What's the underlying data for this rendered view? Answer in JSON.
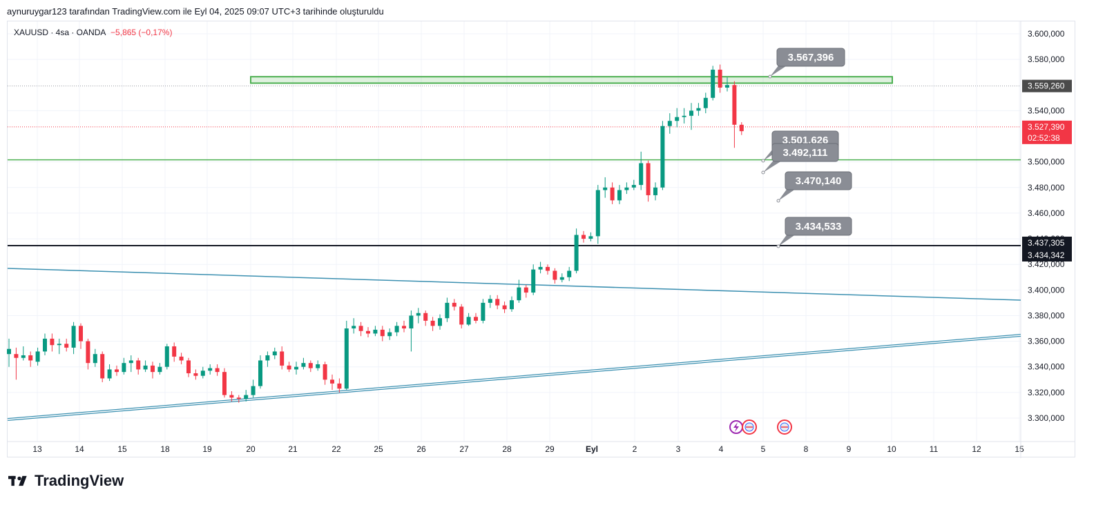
{
  "header": {
    "caption": "aynuruygar123 tarafından TradingView.com ile Eyl 04, 2025 09:07 UTC+3 tarihinde oluşturuldu"
  },
  "legend": {
    "symbol_info": "XAUUSD · 4sa · OANDA",
    "change": "−5,865 (−0,17%)"
  },
  "footer": {
    "brand": "TradingView"
  },
  "chart_data": {
    "type": "candlestick",
    "title": "XAUUSD · 4sa · OANDA",
    "y_range": [
      3290000,
      3610000
    ],
    "y_ticks": [
      {
        "v": 3600000,
        "label": "3.600,000"
      },
      {
        "v": 3580000,
        "label": "3.580,000"
      },
      {
        "v": 3540000,
        "label": "3.540,000"
      },
      {
        "v": 3500000,
        "label": "3.500,000"
      },
      {
        "v": 3480000,
        "label": "3.480,000"
      },
      {
        "v": 3460000,
        "label": "3.460,000"
      },
      {
        "v": 3440000,
        "label": "3.440,000"
      },
      {
        "v": 3420000,
        "label": "3.420,000"
      },
      {
        "v": 3400000,
        "label": "3.400,000"
      },
      {
        "v": 3380000,
        "label": "3.380,000"
      },
      {
        "v": 3360000,
        "label": "3.360,000"
      },
      {
        "v": 3340000,
        "label": "3.340,000"
      },
      {
        "v": 3320000,
        "label": "3.320,000"
      },
      {
        "v": 3300000,
        "label": "3.300,000"
      }
    ],
    "x_ticks": [
      "13",
      "14",
      "15",
      "18",
      "19",
      "20",
      "21",
      "22",
      "25",
      "26",
      "27",
      "28",
      "29",
      "Eyl",
      "2",
      "3",
      "4",
      "5",
      "8",
      "9",
      "10",
      "11",
      "12",
      "15"
    ],
    "price_badges": [
      {
        "label": "3.559,260",
        "v": 3559260,
        "color": "#4a4a4a"
      },
      {
        "label": "3.527,390",
        "sub": "02:52:38",
        "v": 3527390,
        "color": "#f23645"
      },
      {
        "label": "3.437,305",
        "v": 3437305,
        "color": "#131722"
      },
      {
        "label": "3.434,342",
        "v": 3434342,
        "color": "#131722"
      }
    ],
    "callouts": [
      {
        "label": "3.567,396",
        "v": 3567396
      },
      {
        "label": "3.501,626",
        "v": 3501626
      },
      {
        "label": "3.492,111",
        "v": 3492111
      },
      {
        "label": "3.470,140",
        "v": 3470140
      },
      {
        "label": "3.434,533",
        "v": 3434533
      }
    ],
    "zone": {
      "low": 3561500,
      "high": 3566500,
      "color": "#4caf50"
    },
    "hlines": [
      {
        "v": 3501626,
        "color": "#4caf50"
      },
      {
        "v": 3434342,
        "color": "#131722"
      }
    ],
    "candles": [
      [
        3350000,
        3354000,
        3362000,
        3340000
      ],
      [
        3350000,
        3347000,
        3355000,
        3330000
      ],
      [
        3347000,
        3349000,
        3356000,
        3345000
      ],
      [
        3349000,
        3345000,
        3352000,
        3340000
      ],
      [
        3344000,
        3352000,
        3355000,
        3341000
      ],
      [
        3352000,
        3362000,
        3366000,
        3349000
      ],
      [
        3362000,
        3357000,
        3366000,
        3352000
      ],
      [
        3357000,
        3358000,
        3362000,
        3350000
      ],
      [
        3358000,
        3355000,
        3362000,
        3352000
      ],
      [
        3355000,
        3372000,
        3375000,
        3350000
      ],
      [
        3372000,
        3360000,
        3374000,
        3354000
      ],
      [
        3360000,
        3343000,
        3362000,
        3338000
      ],
      [
        3343000,
        3350000,
        3354000,
        3340000
      ],
      [
        3350000,
        3331000,
        3352000,
        3328000
      ],
      [
        3331000,
        3338000,
        3342000,
        3329000
      ],
      [
        3338000,
        3336000,
        3341000,
        3333000
      ],
      [
        3336000,
        3343000,
        3347000,
        3334000
      ],
      [
        3343000,
        3345000,
        3349000,
        3336000
      ],
      [
        3345000,
        3338000,
        3347000,
        3334000
      ],
      [
        3338000,
        3341000,
        3345000,
        3336000
      ],
      [
        3341000,
        3336000,
        3344000,
        3331000
      ],
      [
        3336000,
        3340000,
        3343000,
        3334000
      ],
      [
        3340000,
        3356000,
        3358000,
        3338000
      ],
      [
        3356000,
        3348000,
        3359000,
        3344000
      ],
      [
        3348000,
        3345000,
        3351000,
        3342000
      ],
      [
        3345000,
        3335000,
        3347000,
        3332000
      ],
      [
        3335000,
        3333000,
        3338000,
        3330000
      ],
      [
        3333000,
        3337000,
        3340000,
        3331000
      ],
      [
        3337000,
        3339000,
        3342000,
        3334000
      ],
      [
        3339000,
        3336000,
        3342000,
        3333000
      ],
      [
        3336000,
        3318000,
        3339000,
        3316000
      ],
      [
        3318000,
        3316000,
        3321000,
        3313000
      ],
      [
        3316000,
        3315000,
        3318000,
        3312000
      ],
      [
        3315000,
        3318000,
        3322000,
        3313000
      ],
      [
        3318000,
        3325000,
        3330000,
        3316000
      ],
      [
        3325000,
        3345000,
        3349000,
        3323000
      ],
      [
        3345000,
        3349000,
        3352000,
        3340000
      ],
      [
        3349000,
        3352000,
        3355000,
        3346000
      ],
      [
        3352000,
        3341000,
        3356000,
        3338000
      ],
      [
        3341000,
        3338000,
        3344000,
        3336000
      ],
      [
        3338000,
        3340000,
        3344000,
        3334000
      ],
      [
        3340000,
        3343000,
        3347000,
        3338000
      ],
      [
        3343000,
        3339000,
        3345000,
        3336000
      ],
      [
        3339000,
        3342000,
        3345000,
        3337000
      ],
      [
        3342000,
        3330000,
        3344000,
        3326000
      ],
      [
        3330000,
        3327000,
        3334000,
        3322000
      ],
      [
        3327000,
        3323000,
        3331000,
        3320000
      ],
      [
        3323000,
        3370000,
        3376000,
        3322000
      ],
      [
        3370000,
        3372000,
        3378000,
        3366000
      ],
      [
        3372000,
        3368000,
        3375000,
        3364000
      ],
      [
        3368000,
        3366000,
        3371000,
        3363000
      ],
      [
        3366000,
        3369000,
        3372000,
        3364000
      ],
      [
        3369000,
        3364000,
        3372000,
        3360000
      ],
      [
        3364000,
        3367000,
        3370000,
        3361000
      ],
      [
        3367000,
        3372000,
        3375000,
        3364000
      ],
      [
        3372000,
        3370000,
        3376000,
        3367000
      ],
      [
        3370000,
        3380000,
        3384000,
        3352000
      ],
      [
        3380000,
        3382000,
        3386000,
        3374000
      ],
      [
        3382000,
        3376000,
        3384000,
        3372000
      ],
      [
        3376000,
        3372000,
        3379000,
        3368000
      ],
      [
        3372000,
        3378000,
        3381000,
        3369000
      ],
      [
        3378000,
        3390000,
        3394000,
        3375000
      ],
      [
        3390000,
        3387000,
        3393000,
        3384000
      ],
      [
        3387000,
        3373000,
        3389000,
        3370000
      ],
      [
        3373000,
        3379000,
        3382000,
        3372000
      ],
      [
        3379000,
        3376000,
        3382000,
        3374000
      ],
      [
        3376000,
        3390000,
        3393000,
        3374000
      ],
      [
        3390000,
        3393000,
        3396000,
        3386000
      ],
      [
        3393000,
        3388000,
        3396000,
        3385000
      ],
      [
        3388000,
        3385000,
        3391000,
        3382000
      ],
      [
        3385000,
        3392000,
        3395000,
        3383000
      ],
      [
        3392000,
        3402000,
        3408000,
        3390000
      ],
      [
        3402000,
        3398000,
        3404000,
        3394000
      ],
      [
        3398000,
        3416000,
        3420000,
        3396000
      ],
      [
        3416000,
        3418000,
        3422000,
        3413000
      ],
      [
        3418000,
        3415000,
        3420000,
        3412000
      ],
      [
        3415000,
        3408000,
        3417000,
        3405000
      ],
      [
        3408000,
        3410000,
        3413000,
        3406000
      ],
      [
        3410000,
        3415000,
        3418000,
        3407000
      ],
      [
        3415000,
        3443000,
        3448000,
        3413000
      ],
      [
        3443000,
        3440000,
        3446000,
        3437000
      ],
      [
        3440000,
        3442000,
        3445000,
        3438000
      ],
      [
        3442000,
        3478000,
        3482000,
        3436000
      ],
      [
        3478000,
        3480000,
        3488000,
        3472000
      ],
      [
        3480000,
        3470000,
        3484000,
        3467000
      ],
      [
        3470000,
        3478000,
        3482000,
        3467000
      ],
      [
        3478000,
        3480000,
        3484000,
        3475000
      ],
      [
        3480000,
        3482000,
        3486000,
        3478000
      ],
      [
        3482000,
        3499000,
        3508000,
        3478000
      ],
      [
        3499000,
        3474000,
        3501000,
        3469000
      ],
      [
        3474000,
        3480000,
        3484000,
        3470000
      ],
      [
        3480000,
        3528000,
        3532000,
        3478000
      ],
      [
        3528000,
        3532000,
        3538000,
        3522000
      ],
      [
        3532000,
        3535000,
        3542000,
        3527000
      ],
      [
        3535000,
        3536000,
        3542000,
        3530000
      ],
      [
        3536000,
        3540000,
        3546000,
        3525000
      ],
      [
        3540000,
        3542000,
        3546000,
        3536000
      ],
      [
        3542000,
        3550000,
        3554000,
        3538000
      ],
      [
        3550000,
        3572000,
        3575000,
        3548000
      ],
      [
        3572000,
        3558000,
        3576000,
        3554000
      ],
      [
        3558000,
        3560000,
        3566000,
        3555000
      ],
      [
        3560000,
        3529000,
        3563000,
        3511000
      ],
      [
        3529000,
        3524000,
        3531000,
        3521000
      ]
    ]
  }
}
